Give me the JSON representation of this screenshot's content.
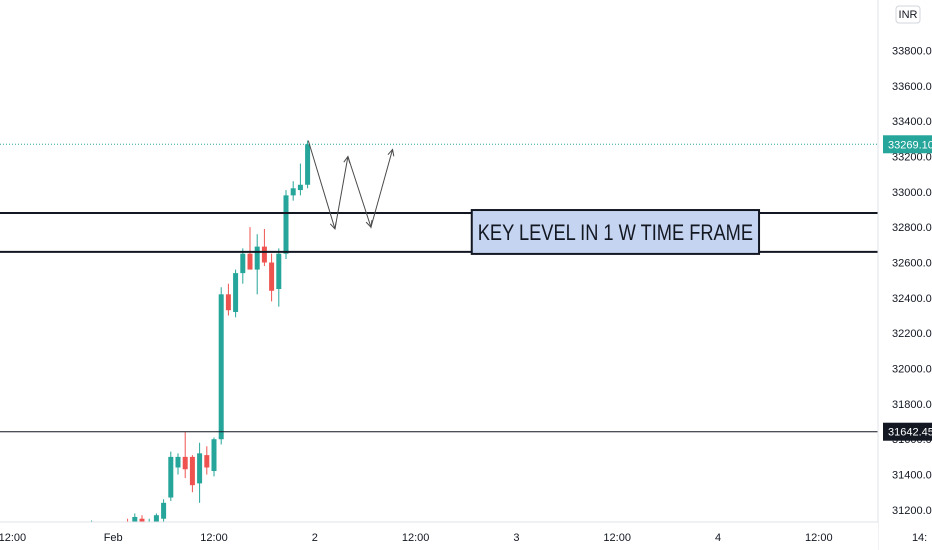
{
  "chart_data": {
    "type": "candlestick",
    "currency": "INR",
    "ylim": [
      31060,
      33890
    ],
    "y_ticks": [
      31200,
      31400,
      31600,
      31800,
      32000,
      32200,
      32400,
      32600,
      32800,
      33000,
      33200,
      33400,
      33600,
      33800
    ],
    "y_tick_labels": [
      "31200.00",
      "31400.00",
      "31600.00",
      "31800.00",
      "32000.00",
      "32200.00",
      "32400.00",
      "32600.00",
      "32800.00",
      "33000.00",
      "33200.00",
      "33400.00",
      "33600.00",
      "33800.00"
    ],
    "x_tick_labels": [
      {
        "i": -28,
        "label": "12:00"
      },
      {
        "i": -14,
        "label": "Feb"
      },
      {
        "i": 0,
        "label": "12:00"
      },
      {
        "i": 14,
        "label": "2"
      },
      {
        "i": 28,
        "label": "12:00"
      },
      {
        "i": 42,
        "label": "3"
      },
      {
        "i": 56,
        "label": "12:00"
      },
      {
        "i": 70,
        "label": "4"
      },
      {
        "i": 84,
        "label": "12:00"
      },
      {
        "i": 98,
        "label": "14:"
      }
    ],
    "candles": [
      {
        "i": -17,
        "o": 31060,
        "h": 31140,
        "l": 31040,
        "c": 31065
      },
      {
        "i": -16,
        "o": 31080,
        "h": 31110,
        "l": 31050,
        "c": 31090
      },
      {
        "i": -15,
        "o": 31090,
        "h": 31110,
        "l": 31060,
        "c": 31100
      },
      {
        "i": -14,
        "o": 31100,
        "h": 31120,
        "l": 31070,
        "c": 31080
      },
      {
        "i": -13,
        "o": 31080,
        "h": 31130,
        "l": 31060,
        "c": 31095
      },
      {
        "i": -12,
        "o": 31100,
        "h": 31150,
        "l": 31080,
        "c": 31080
      },
      {
        "i": -11,
        "o": 31080,
        "h": 31180,
        "l": 31070,
        "c": 31160
      },
      {
        "i": -10,
        "o": 31150,
        "h": 31170,
        "l": 31100,
        "c": 31110
      },
      {
        "i": -9,
        "o": 31100,
        "h": 31150,
        "l": 31090,
        "c": 31130
      },
      {
        "i": -8,
        "o": 31110,
        "h": 31180,
        "l": 31090,
        "c": 31170
      },
      {
        "i": -7,
        "o": 31150,
        "h": 31260,
        "l": 31120,
        "c": 31240
      },
      {
        "i": -6,
        "o": 31270,
        "h": 31530,
        "l": 31250,
        "c": 31500
      },
      {
        "i": -5,
        "o": 31440,
        "h": 31520,
        "l": 31400,
        "c": 31500
      },
      {
        "i": -4,
        "o": 31500,
        "h": 31640,
        "l": 31380,
        "c": 31430
      },
      {
        "i": -3,
        "o": 31500,
        "h": 31510,
        "l": 31300,
        "c": 31340
      },
      {
        "i": -2,
        "o": 31350,
        "h": 31580,
        "l": 31240,
        "c": 31520
      },
      {
        "i": -1,
        "o": 31510,
        "h": 31560,
        "l": 31400,
        "c": 31440
      },
      {
        "i": 0,
        "o": 31420,
        "h": 31610,
        "l": 31390,
        "c": 31600
      },
      {
        "i": 1,
        "o": 31600,
        "h": 32460,
        "l": 31570,
        "c": 32420
      },
      {
        "i": 2,
        "o": 32420,
        "h": 32480,
        "l": 32300,
        "c": 32330
      },
      {
        "i": 3,
        "o": 32320,
        "h": 32560,
        "l": 32290,
        "c": 32540
      },
      {
        "i": 4,
        "o": 32540,
        "h": 32680,
        "l": 32480,
        "c": 32650
      },
      {
        "i": 5,
        "o": 32650,
        "h": 32800,
        "l": 32580,
        "c": 32560
      },
      {
        "i": 6,
        "o": 32560,
        "h": 32760,
        "l": 32420,
        "c": 32690
      },
      {
        "i": 7,
        "o": 32690,
        "h": 32790,
        "l": 32580,
        "c": 32600
      },
      {
        "i": 8,
        "o": 32600,
        "h": 32650,
        "l": 32380,
        "c": 32440
      },
      {
        "i": 9,
        "o": 32450,
        "h": 32680,
        "l": 32350,
        "c": 32650
      },
      {
        "i": 10,
        "o": 32650,
        "h": 33010,
        "l": 32620,
        "c": 32980
      },
      {
        "i": 11,
        "o": 32980,
        "h": 33060,
        "l": 32950,
        "c": 33020
      },
      {
        "i": 12,
        "o": 33010,
        "h": 33160,
        "l": 32980,
        "c": 33040
      },
      {
        "i": 13,
        "o": 33040,
        "h": 33290,
        "l": 33020,
        "c": 33269.1
      }
    ],
    "levels": [
      {
        "price": 32880,
        "label": ""
      },
      {
        "price": 32660,
        "label": ""
      },
      {
        "price": 31642.45,
        "label": "31642.45"
      }
    ],
    "current_price": 33269.1,
    "current_price_label": "33269.10",
    "projection_path": [
      {
        "i": 13.1,
        "p": 33290
      },
      {
        "i": 16.8,
        "p": 32790
      },
      {
        "i": 18.6,
        "p": 33200
      },
      {
        "i": 21.8,
        "p": 32800
      },
      {
        "i": 24.8,
        "p": 33240
      }
    ],
    "annotation": "KEY LEVEL IN 1 W TIME FRAME",
    "colors": {
      "up": "#26a69a",
      "down": "#ef5350",
      "level": "#131722",
      "annotation_bg": "#c5d4f0",
      "current_price": "#26a69a"
    }
  }
}
